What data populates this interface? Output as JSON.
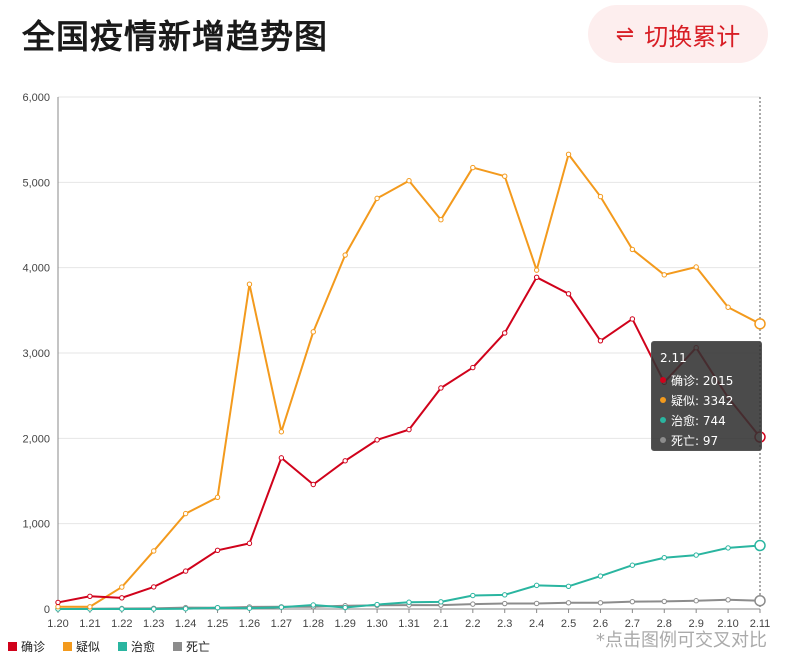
{
  "header": {
    "title": "全国疫情新增趋势图",
    "switch_label": "切换累计",
    "switch_icon": "⇌"
  },
  "hint": "*点击图例可交叉对比",
  "tooltip": {
    "title": "2.11",
    "rows": [
      {
        "label": "确诊: 2015",
        "color": "#d0021b"
      },
      {
        "label": "疑似: 3342",
        "color": "#f39a1d"
      },
      {
        "label": "治愈: 744",
        "color": "#2ab5a0"
      },
      {
        "label": "死亡: 97",
        "color": "#8c8c8c"
      }
    ]
  },
  "chart_data": {
    "type": "line",
    "categories": [
      "1.20",
      "1.21",
      "1.22",
      "1.23",
      "1.24",
      "1.25",
      "1.26",
      "1.27",
      "1.28",
      "1.29",
      "1.30",
      "1.31",
      "2.1",
      "2.2",
      "2.3",
      "2.4",
      "2.5",
      "2.6",
      "2.7",
      "2.8",
      "2.9",
      "2.10",
      "2.11"
    ],
    "ylim": [
      0,
      6000
    ],
    "yticks": [
      "0",
      "1,000",
      "2,000",
      "3,000",
      "4,000",
      "5,000",
      "6,000"
    ],
    "ytick_values": [
      0,
      1000,
      2000,
      3000,
      4000,
      5000,
      6000
    ],
    "grid": true,
    "legend_position": "bottom-left",
    "series": [
      {
        "name": "确诊",
        "color": "#d0021b",
        "values": [
          77,
          149,
          131,
          259,
          444,
          688,
          769,
          1771,
          1459,
          1737,
          1982,
          2102,
          2590,
          2829,
          3235,
          3887,
          3694,
          3143,
          3399,
          2656,
          3062,
          2478,
          2015
        ]
      },
      {
        "name": "疑似",
        "color": "#f39a1d",
        "values": [
          27,
          26,
          257,
          680,
          1118,
          1309,
          3806,
          2077,
          3248,
          4148,
          4812,
          5019,
          4562,
          5173,
          5072,
          3971,
          5328,
          4833,
          4214,
          3916,
          4008,
          3536,
          3342
        ]
      },
      {
        "name": "治愈",
        "color": "#2ab5a0",
        "values": [
          0,
          0,
          0,
          0,
          3,
          15,
          9,
          21,
          47,
          17,
          52,
          79,
          84,
          158,
          166,
          277,
          266,
          386,
          513,
          601,
          632,
          716,
          744
        ]
      },
      {
        "name": "死亡",
        "color": "#8c8c8c",
        "values": [
          0,
          3,
          6,
          8,
          16,
          15,
          24,
          26,
          26,
          38,
          43,
          46,
          45,
          57,
          64,
          65,
          73,
          73,
          86,
          89,
          97,
          108,
          97
        ]
      }
    ]
  }
}
